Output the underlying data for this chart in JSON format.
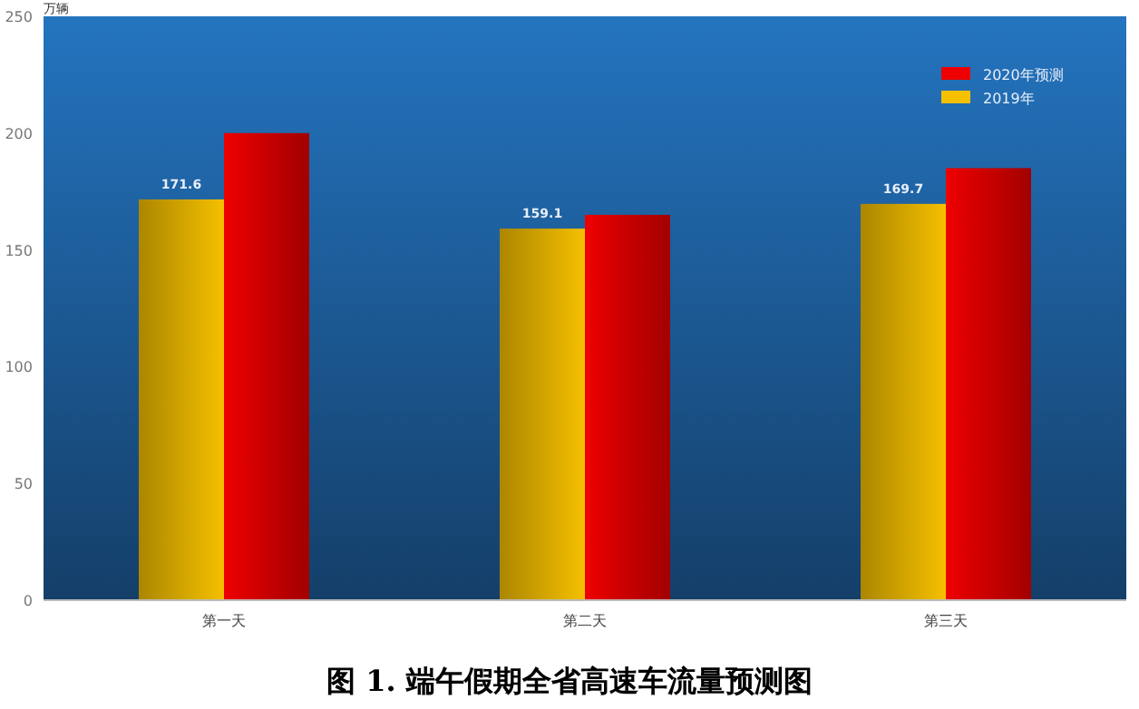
{
  "chart_data": {
    "type": "bar",
    "title": "图 1. 端午假期全省高速车流量预测图",
    "ylabel": "万辆",
    "categories": [
      "第一天",
      "第二天",
      "第三天"
    ],
    "series": [
      {
        "name": "2019年",
        "color": "#f5c000",
        "values": [
          171.6,
          159.1,
          169.7
        ],
        "value_labels": [
          "171.6",
          "159.1",
          "169.7"
        ]
      },
      {
        "name": "2020年预测",
        "color": "#ee0000",
        "values": [
          200,
          165,
          185
        ]
      }
    ],
    "ylim": [
      0,
      250
    ],
    "yticks": [
      0,
      50,
      100,
      150,
      200,
      250
    ],
    "grid": false,
    "legend": "top right"
  }
}
